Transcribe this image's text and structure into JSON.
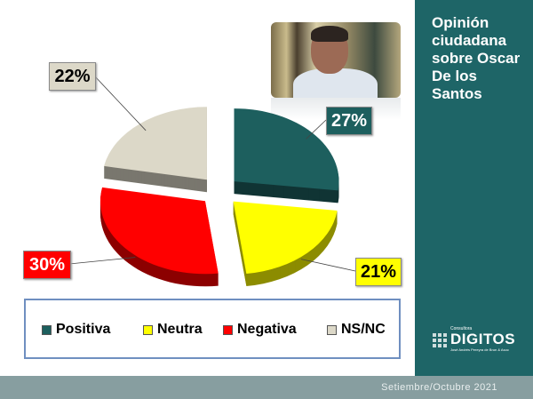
{
  "title": "Opinión ciudadana sobre Oscar De los Santos",
  "footer": "Setiembre/Octubre 2021",
  "logo": {
    "small": "Consultora",
    "name": "DIGITOS",
    "sub": "José Andrés Pereyra de Brun & Asoc"
  },
  "chart_data": {
    "type": "pie",
    "style": "3d-exploded",
    "categories": [
      "Positiva",
      "Neutra",
      "Negativa",
      "NS/NC"
    ],
    "values": [
      27,
      21,
      30,
      22
    ],
    "labels": [
      "27%",
      "21%",
      "30%",
      "22%"
    ],
    "colors": [
      "#1d5f5e",
      "#ffff00",
      "#ff0000",
      "#dcd8c8"
    ],
    "legend_position": "bottom"
  }
}
